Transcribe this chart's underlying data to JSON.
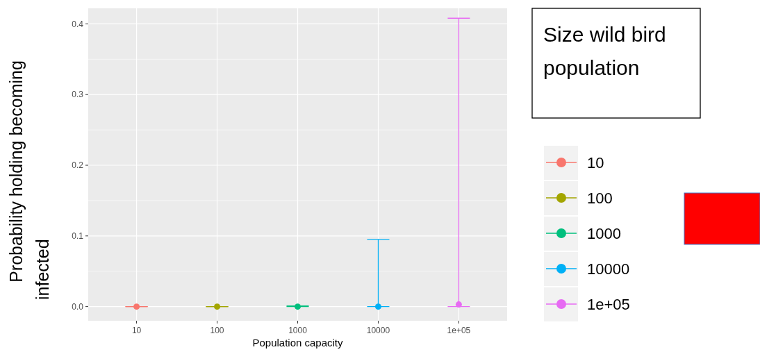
{
  "chart_data": {
    "type": "scatter",
    "xlabel": "Population capacity",
    "ylabel": "Probability holding becoming infected",
    "legend_title": "Size wild bird population",
    "categories": [
      "10",
      "100",
      "1000",
      "10000",
      "1e+05"
    ],
    "series": [
      {
        "name": "10",
        "color": "#f8766d",
        "values": [
          0,
          null,
          null,
          null,
          null
        ],
        "errors": [
          [
            0,
            0
          ],
          null,
          null,
          null,
          null
        ]
      },
      {
        "name": "100",
        "color": "#a3a500",
        "values": [
          null,
          0,
          null,
          null,
          null
        ],
        "errors": [
          null,
          [
            0,
            0
          ],
          null,
          null,
          null
        ]
      },
      {
        "name": "1000",
        "color": "#00bf7d",
        "values": [
          null,
          null,
          0,
          null,
          null
        ],
        "errors": [
          null,
          null,
          [
            0,
            0.001
          ],
          null,
          null
        ]
      },
      {
        "name": "10000",
        "color": "#00b0f6",
        "values": [
          null,
          null,
          null,
          0,
          null
        ],
        "errors": [
          null,
          null,
          null,
          [
            0,
            0.095
          ],
          null
        ]
      },
      {
        "name": "1e+05",
        "color": "#e76bf3",
        "values": [
          null,
          null,
          null,
          null,
          0.003
        ],
        "errors": [
          null,
          null,
          null,
          null,
          [
            0,
            0.408
          ]
        ]
      }
    ],
    "ylim": [
      -0.02,
      0.422
    ],
    "yticks": [
      {
        "value": 0,
        "label": "0.0"
      },
      0.1,
      0.2,
      0.3,
      0.4
    ],
    "grid": true,
    "legend": "right",
    "marker": "circle"
  }
}
